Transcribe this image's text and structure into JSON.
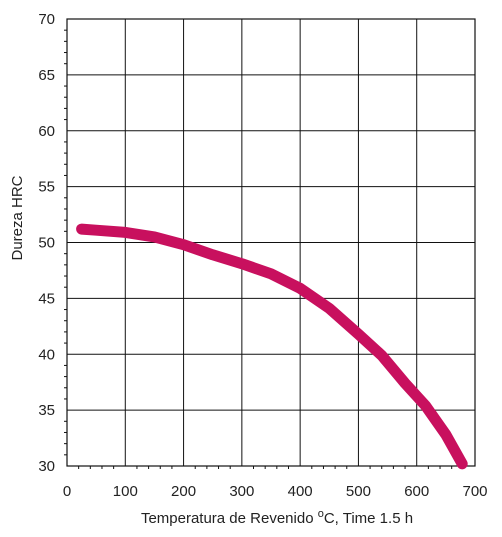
{
  "chart_data": {
    "type": "line",
    "xlabel_prefix": "Temperatura de Revenido ",
    "xlabel_unit_sup": "o",
    "xlabel_suffix": "C, Time 1.5 h",
    "ylabel": "Dureza HRC",
    "xlim": [
      0,
      700
    ],
    "ylim": [
      30,
      70
    ],
    "x_ticks": [
      0,
      100,
      200,
      300,
      400,
      500,
      600,
      700
    ],
    "y_ticks": [
      30,
      35,
      40,
      45,
      50,
      55,
      60,
      65,
      70
    ],
    "x_tick_labels": [
      "0",
      "100",
      "200",
      "300",
      "400",
      "500",
      "600",
      "700"
    ],
    "y_tick_labels": [
      "30",
      "35",
      "40",
      "45",
      "50",
      "55",
      "60",
      "65",
      "70"
    ],
    "grid": true,
    "series": [
      {
        "color": "#c8105e",
        "x": [
          25,
          50,
          100,
          150,
          200,
          250,
          300,
          350,
          400,
          450,
          500,
          540,
          580,
          615,
          650,
          678
        ],
        "y": [
          51.2,
          51.1,
          50.9,
          50.5,
          49.8,
          48.9,
          48.1,
          47.2,
          45.9,
          44.1,
          41.8,
          39.9,
          37.4,
          35.4,
          32.8,
          30.2
        ]
      }
    ]
  }
}
